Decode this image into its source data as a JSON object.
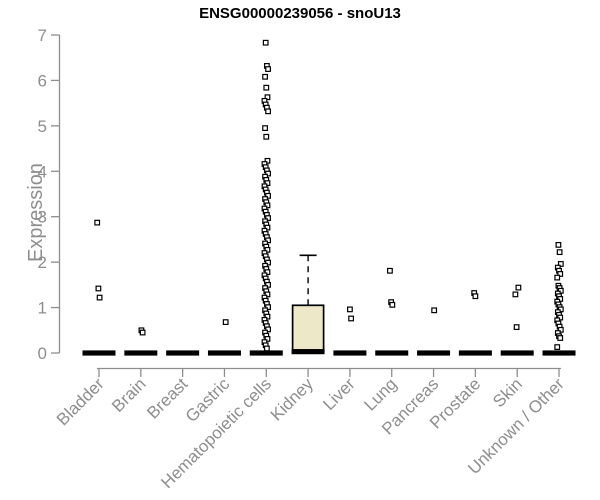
{
  "chart_data": {
    "type": "boxplot",
    "title": "ENSG00000239056 - snoU13",
    "xlabel": "",
    "ylabel": "Expression",
    "ylim": [
      0,
      7
    ],
    "yticks": [
      0,
      1,
      2,
      3,
      4,
      5,
      6,
      7
    ],
    "grid": false,
    "legend": false,
    "marker": "open-square",
    "colors": {
      "box_fill": "#EDE9C8",
      "box_border": "#000000",
      "median": "#000000",
      "axis": "#8E8E8E",
      "tick_label": "#8E8E8E",
      "title": "#000000",
      "outlier": "#000000",
      "background": "#FFFFFF"
    },
    "categories": [
      "Bladder",
      "Brain",
      "Breast",
      "Gastric",
      "Hematopoietic cells",
      "Kidney",
      "Liver",
      "Lung",
      "Pancreas",
      "Prostate",
      "Skin",
      "Unknown / Other"
    ],
    "series": [
      {
        "name": "Bladder",
        "q1": 0,
        "median": 0,
        "q3": 0,
        "whisker_low": 0,
        "whisker_high": 0,
        "outliers": [
          2.87,
          1.42,
          1.22
        ]
      },
      {
        "name": "Brain",
        "q1": 0,
        "median": 0,
        "q3": 0,
        "whisker_low": 0,
        "whisker_high": 0,
        "outliers": [
          0.5,
          0.45
        ]
      },
      {
        "name": "Breast",
        "q1": 0,
        "median": 0,
        "q3": 0,
        "whisker_low": 0,
        "whisker_high": 0,
        "outliers": []
      },
      {
        "name": "Gastric",
        "q1": 0,
        "median": 0,
        "q3": 0,
        "whisker_low": 0,
        "whisker_high": 0,
        "outliers": [
          0.68
        ]
      },
      {
        "name": "Hematopoietic cells",
        "q1": 0,
        "median": 0,
        "q3": 0,
        "whisker_low": 0,
        "whisker_high": 0,
        "outliers": [
          6.83,
          6.32,
          6.25,
          6.08,
          5.84,
          5.63,
          5.55,
          5.47,
          5.4,
          5.32,
          4.95,
          4.76,
          4.23,
          4.16,
          4.09,
          4.02,
          3.95,
          3.88,
          3.81,
          3.74,
          3.67,
          3.6,
          3.53,
          3.46,
          3.39,
          3.32,
          3.25,
          3.18,
          3.11,
          3.04,
          2.97,
          2.9,
          2.83,
          2.76,
          2.69,
          2.62,
          2.55,
          2.48,
          2.41,
          2.34,
          2.27,
          2.2,
          2.13,
          2.06,
          1.99,
          1.92,
          1.85,
          1.78,
          1.71,
          1.64,
          1.57,
          1.5,
          1.43,
          1.36,
          1.29,
          1.22,
          1.15,
          1.08,
          1.01,
          0.94,
          0.87,
          0.8,
          0.73,
          0.66,
          0.59,
          0.52,
          0.45,
          0.38,
          0.31,
          0.24,
          0.17,
          0.1
        ]
      },
      {
        "name": "Kidney",
        "q1": 0,
        "median": 0.03,
        "q3": 1.05,
        "whisker_low": 0,
        "whisker_high": 2.15,
        "outliers": []
      },
      {
        "name": "Liver",
        "q1": 0,
        "median": 0,
        "q3": 0,
        "whisker_low": 0,
        "whisker_high": 0,
        "outliers": [
          0.96,
          0.76
        ]
      },
      {
        "name": "Lung",
        "q1": 0,
        "median": 0,
        "q3": 0,
        "whisker_low": 0,
        "whisker_high": 0,
        "outliers": [
          1.81,
          1.12,
          1.06
        ]
      },
      {
        "name": "Pancreas",
        "q1": 0,
        "median": 0,
        "q3": 0,
        "whisker_low": 0,
        "whisker_high": 0,
        "outliers": [
          0.94
        ]
      },
      {
        "name": "Prostate",
        "q1": 0,
        "median": 0,
        "q3": 0,
        "whisker_low": 0,
        "whisker_high": 0,
        "outliers": [
          1.32,
          1.25
        ]
      },
      {
        "name": "Skin",
        "q1": 0,
        "median": 0,
        "q3": 0,
        "whisker_low": 0,
        "whisker_high": 0,
        "outliers": [
          1.44,
          1.29,
          0.57
        ]
      },
      {
        "name": "Unknown / Other",
        "q1": 0,
        "median": 0,
        "q3": 0,
        "whisker_low": 0,
        "whisker_high": 0,
        "outliers": [
          2.38,
          2.22,
          1.96,
          1.88,
          1.81,
          1.74,
          1.66,
          1.48,
          1.43,
          1.37,
          1.31,
          1.25,
          1.19,
          1.13,
          1.07,
          1.01,
          0.96,
          0.9,
          0.84,
          0.78,
          0.72,
          0.65,
          0.58,
          0.51,
          0.44,
          0.37,
          0.33,
          0.13
        ]
      }
    ]
  }
}
